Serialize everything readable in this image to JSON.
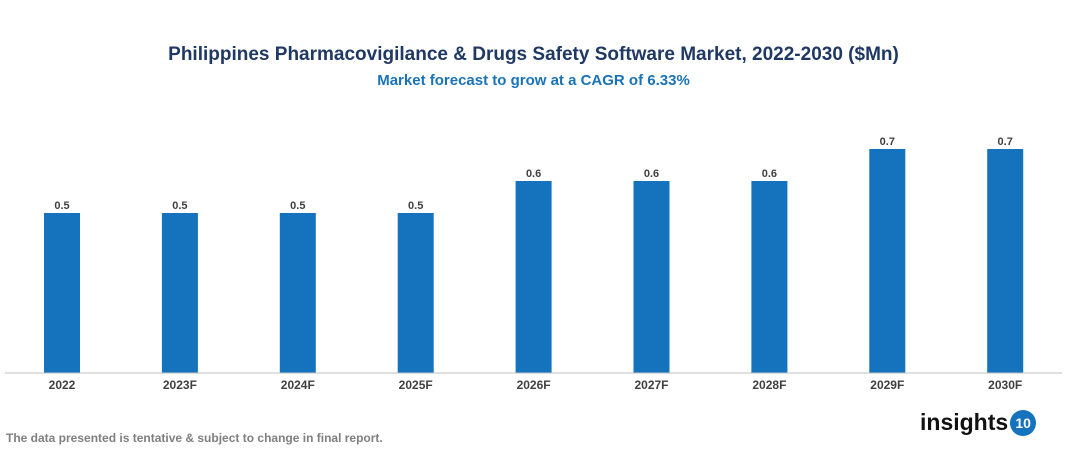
{
  "chart_data": {
    "type": "bar",
    "title": "Philippines Pharmacovigilance & Drugs Safety Software Market, 2022-2030 ($Mn)",
    "subtitle": "Market forecast to grow at a CAGR of 6.33%",
    "categories": [
      "2022",
      "2023F",
      "2024F",
      "2025F",
      "2026F",
      "2027F",
      "2028F",
      "2029F",
      "2030F"
    ],
    "values": [
      0.5,
      0.5,
      0.5,
      0.5,
      0.6,
      0.6,
      0.6,
      0.7,
      0.7
    ],
    "data_labels": [
      "0.5",
      "0.5",
      "0.5",
      "0.5",
      "0.6",
      "0.6",
      "0.6",
      "0.7",
      "0.7"
    ],
    "xlabel": "",
    "ylabel": "",
    "ylim": [
      0,
      0.8
    ],
    "grid": false,
    "legend": "none",
    "bar_color": "#1473bc"
  },
  "footer": "The data presented is tentative & subject to change in final report.",
  "logo": {
    "text": "insights",
    "badge": "10"
  }
}
